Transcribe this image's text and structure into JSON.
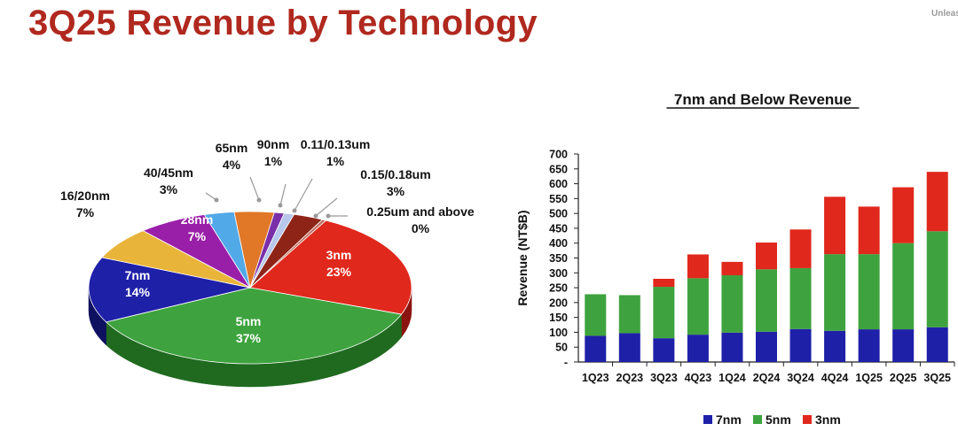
{
  "header": {
    "title": "3Q25 Revenue by Technology",
    "corner_text": "Unleas"
  },
  "colors": {
    "title": "#b0281e",
    "n7": "#1f20a8",
    "n5": "#3ea33e",
    "n3": "#e0281c"
  },
  "chart_data": [
    {
      "type": "pie",
      "title": "",
      "slices": [
        {
          "label": "3nm",
          "percent": "23%",
          "value": 23,
          "color": "#e0281c",
          "side": "#8c1410"
        },
        {
          "label": "5nm",
          "percent": "37%",
          "value": 37,
          "color": "#3ea33e",
          "side": "#1f6a1f"
        },
        {
          "label": "7nm",
          "percent": "14%",
          "value": 14,
          "color": "#1f20a8",
          "side": "#0e1060"
        },
        {
          "label": "16/20nm",
          "percent": "7%",
          "value": 7,
          "color": "#e9b43a",
          "side": "#a07418"
        },
        {
          "label": "28nm",
          "percent": "7%",
          "value": 7,
          "color": "#9a1fa8",
          "side": "#5a0f64"
        },
        {
          "label": "40/45nm",
          "percent": "3%",
          "value": 3,
          "color": "#52a9e8",
          "side": "#2a6a9c"
        },
        {
          "label": "65nm",
          "percent": "4%",
          "value": 4,
          "color": "#e07828",
          "side": "#8c4810"
        },
        {
          "label": "90nm",
          "percent": "1%",
          "value": 1,
          "color": "#7a2fa8",
          "side": "#401664"
        },
        {
          "label": "0.11/0.13um",
          "percent": "1%",
          "value": 1,
          "color": "#b8c8ec",
          "side": "#6878a0"
        },
        {
          "label": "0.15/0.18um",
          "percent": "3%",
          "value": 3,
          "color": "#8e2418",
          "side": "#4c120c"
        },
        {
          "label": "0.25um and above",
          "percent": "0%",
          "value": 0.4,
          "color": "#c07060",
          "side": "#703830"
        }
      ]
    },
    {
      "type": "bar",
      "stacked": true,
      "title": "7nm and Below Revenue",
      "xlabel": "",
      "ylabel": "Revenue (NT$B)",
      "ylim": [
        0,
        700
      ],
      "yticks": [
        "-",
        "50",
        "100",
        "150",
        "200",
        "250",
        "300",
        "350",
        "400",
        "450",
        "500",
        "550",
        "600",
        "650",
        "700"
      ],
      "categories": [
        "1Q23",
        "2Q23",
        "3Q23",
        "4Q23",
        "1Q24",
        "2Q24",
        "3Q24",
        "4Q24",
        "1Q25",
        "2Q25",
        "3Q25"
      ],
      "series": [
        {
          "name": "7nm",
          "color": "#1f20a8",
          "values": [
            88,
            97,
            80,
            92,
            99,
            102,
            111,
            105,
            110,
            110,
            117
          ]
        },
        {
          "name": "5nm",
          "color": "#3ea33e",
          "values": [
            140,
            128,
            173,
            190,
            193,
            210,
            205,
            258,
            253,
            290,
            323
          ]
        },
        {
          "name": "3nm",
          "color": "#e0281c",
          "values": [
            0,
            0,
            27,
            80,
            45,
            90,
            130,
            193,
            160,
            188,
            200
          ]
        }
      ],
      "legend_position": "bottom"
    }
  ]
}
